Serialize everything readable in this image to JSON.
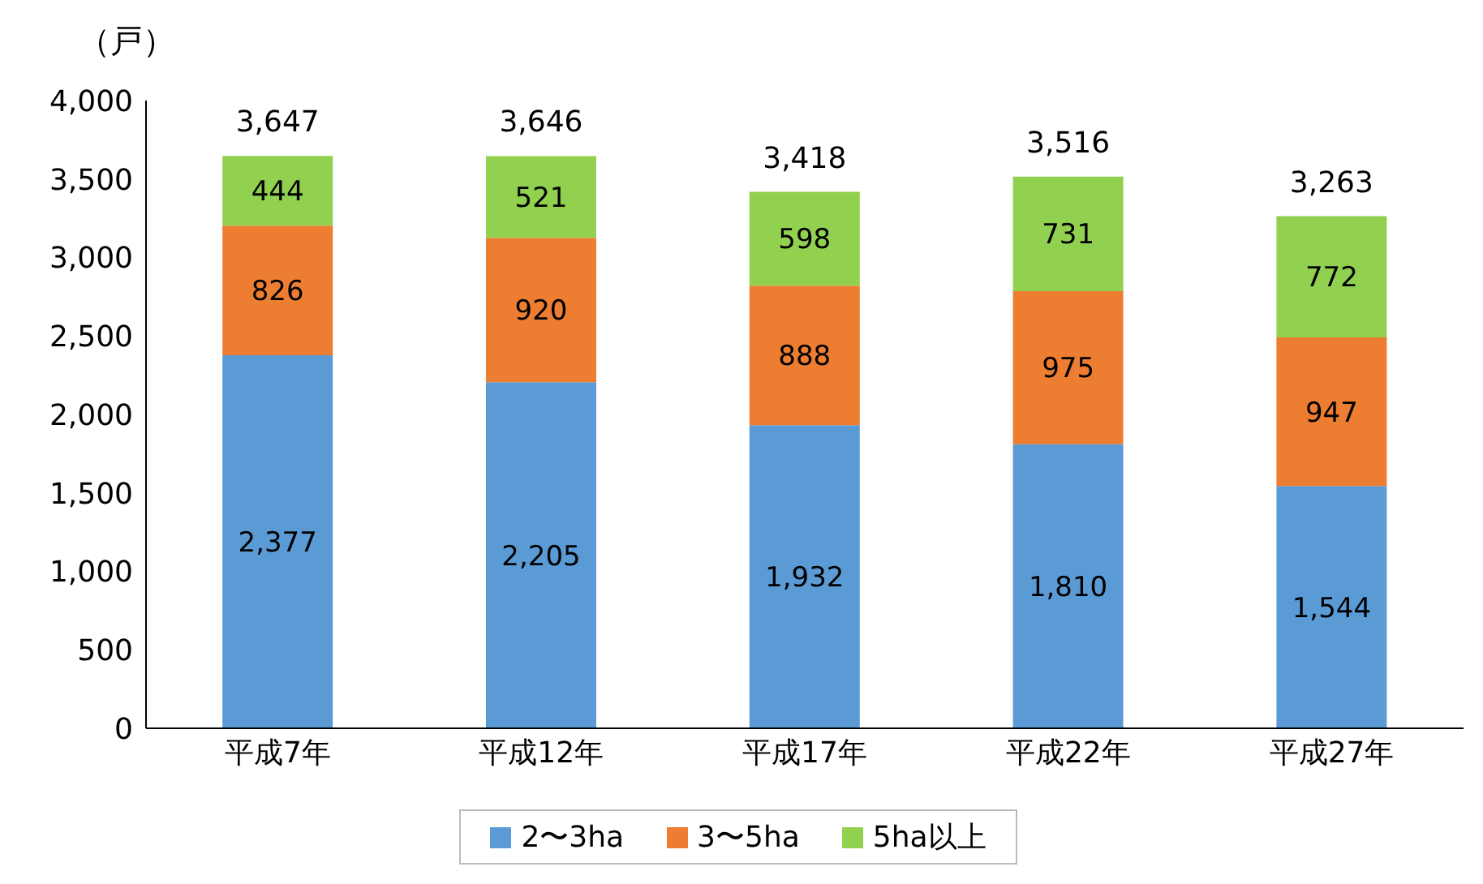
{
  "chart_data": {
    "type": "bar",
    "ylabel": "（戸）",
    "categories": [
      "平成7年",
      "平成12年",
      "平成17年",
      "平成22年",
      "平成27年"
    ],
    "series": [
      {
        "name": "2〜3ha",
        "color": "#5b9bd5",
        "values": [
          2377,
          2205,
          1932,
          1810,
          1544
        ],
        "value_labels": [
          "2,377",
          "2,205",
          "1,932",
          "1,810",
          "1,544"
        ]
      },
      {
        "name": "3〜5ha",
        "color": "#ed7d31",
        "values": [
          826,
          920,
          888,
          975,
          947
        ],
        "value_labels": [
          "826",
          "920",
          "888",
          "975",
          "947"
        ]
      },
      {
        "name": "5ha以上",
        "color": "#92d050",
        "values": [
          444,
          521,
          598,
          731,
          772
        ],
        "value_labels": [
          "444",
          "521",
          "598",
          "731",
          "772"
        ]
      }
    ],
    "stacked": true,
    "totals": [
      "3,647",
      "3,646",
      "3,418",
      "3,516",
      "3,263"
    ],
    "ylim": [
      0,
      4000
    ],
    "yticks": [
      {
        "value": 0,
        "label": "0"
      },
      {
        "value": 500,
        "label": "500"
      },
      {
        "value": 1000,
        "label": "1,000"
      },
      {
        "value": 1500,
        "label": "1,500"
      },
      {
        "value": 2000,
        "label": "2,000"
      },
      {
        "value": 2500,
        "label": "2,500"
      },
      {
        "value": 3000,
        "label": "3,000"
      },
      {
        "value": 3500,
        "label": "3,500"
      },
      {
        "value": 4000,
        "label": "4,000"
      }
    ],
    "grid": false,
    "legend": "bottom"
  }
}
